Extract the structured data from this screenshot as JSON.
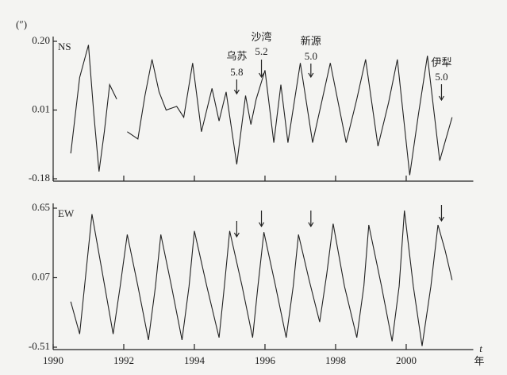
{
  "chart_data": [
    {
      "type": "line",
      "y_unit": "(″)",
      "x": [
        1990.5,
        1990.75,
        1991.0,
        1991.15,
        1991.3,
        1991.45,
        1991.6,
        1991.8,
        1992.0,
        1992.1,
        1992.4,
        1992.6,
        1992.8,
        1993.0,
        1993.2,
        1993.5,
        1993.7,
        1993.95,
        1994.2,
        1994.5,
        1994.7,
        1994.9,
        1995.2,
        1995.45,
        1995.6,
        1995.75,
        1996.0,
        1996.25,
        1996.45,
        1996.65,
        1997.0,
        1997.35,
        1997.6,
        1997.85,
        1998.3,
        1998.6,
        1998.85,
        1999.2,
        1999.5,
        1999.75,
        2000.1,
        2000.35,
        2000.6,
        2000.95,
        2001.3
      ],
      "series": [
        {
          "name": "NS",
          "color": "#222222",
          "values": [
            -0.11,
            0.1,
            0.19,
            0.0,
            -0.16,
            -0.05,
            0.08,
            0.04,
            null,
            -0.05,
            -0.07,
            0.05,
            0.15,
            0.06,
            0.01,
            0.02,
            -0.01,
            0.14,
            -0.05,
            0.07,
            -0.02,
            0.06,
            -0.14,
            0.05,
            -0.03,
            0.04,
            0.12,
            -0.08,
            0.08,
            -0.08,
            0.14,
            -0.08,
            0.03,
            0.14,
            -0.08,
            0.04,
            0.15,
            -0.09,
            0.03,
            0.15,
            -0.17,
            0.0,
            0.16,
            -0.13,
            -0.01
          ]
        }
      ],
      "xlim": [
        1990,
        2001.9
      ],
      "xticks": [
        1990,
        1992,
        1994,
        1996,
        1998,
        2000
      ],
      "ylim": [
        -0.18,
        0.2
      ],
      "yticks": [
        {
          "value": 0.2,
          "label": "0.20"
        },
        0.01,
        -0.18
      ],
      "annotations": [
        {
          "text": "乌苏",
          "magnitude": "5.8",
          "x": 1995.2
        },
        {
          "text": "沙湾",
          "magnitude": "5.2",
          "x": 1995.9
        },
        {
          "text": "新源",
          "magnitude": "5.0",
          "x": 1997.3
        },
        {
          "text": "伊犁",
          "magnitude": "5.0",
          "x": 2001.0
        }
      ]
    },
    {
      "type": "line",
      "xlabel": "t",
      "xunit": "年",
      "x": [
        1990.5,
        1990.75,
        1991.1,
        1991.4,
        1991.7,
        1991.9,
        1992.1,
        1992.4,
        1992.7,
        1992.9,
        1993.05,
        1993.35,
        1993.65,
        1993.85,
        1994.0,
        1994.35,
        1994.7,
        1994.85,
        1995.0,
        1995.35,
        1995.65,
        1995.8,
        1995.97,
        1996.3,
        1996.6,
        1996.8,
        1996.95,
        1997.25,
        1997.55,
        1997.75,
        1997.93,
        1998.25,
        1998.6,
        1998.8,
        1998.94,
        1999.3,
        1999.6,
        1999.8,
        1999.95,
        2000.2,
        2000.45,
        2000.7,
        2000.9,
        2001.1,
        2001.3
      ],
      "series": [
        {
          "name": "EW",
          "color": "#222222",
          "values": [
            -0.13,
            -0.4,
            0.6,
            0.1,
            -0.4,
            0.0,
            0.43,
            0.0,
            -0.45,
            0.0,
            0.43,
            0.0,
            -0.45,
            0.0,
            0.46,
            0.0,
            -0.43,
            0.0,
            0.46,
            0.0,
            -0.43,
            0.0,
            0.45,
            0.0,
            -0.43,
            0.0,
            0.43,
            0.05,
            -0.3,
            0.1,
            0.52,
            0.0,
            -0.43,
            0.0,
            0.51,
            0.0,
            -0.46,
            0.0,
            0.63,
            0.0,
            -0.5,
            0.0,
            0.51,
            0.3,
            0.05
          ]
        }
      ],
      "xlim": [
        1990,
        2001.9
      ],
      "xticks": [
        1990,
        1992,
        1994,
        1996,
        1998,
        2000
      ],
      "ylim": [
        -0.51,
        0.65
      ],
      "yticks": [
        0.65,
        0.07,
        -0.51
      ]
    }
  ]
}
